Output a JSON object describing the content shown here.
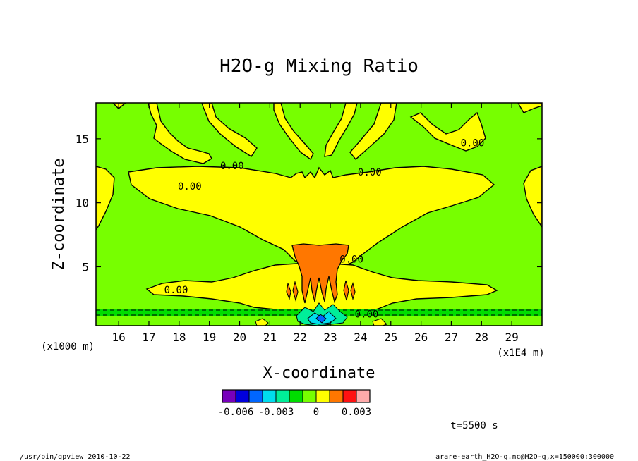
{
  "chart_data": {
    "type": "heatmap",
    "title": "H2O-g Mixing Ratio",
    "xlabel": "X-coordinate",
    "ylabel": "Z-coordinate",
    "x_unit_note": "(x1E4 m)",
    "y_unit_note": "(x1000 m)",
    "xlim": [
      15.25,
      30.0
    ],
    "ylim": [
      0.4,
      17.8
    ],
    "x_ticks": [
      16,
      17,
      18,
      19,
      20,
      21,
      22,
      23,
      24,
      25,
      26,
      27,
      28,
      29
    ],
    "y_ticks": [
      5,
      10,
      15
    ],
    "contour_labels": [
      {
        "text": "0.00",
        "x": 19.75,
        "z": 12.9
      },
      {
        "text": "0.00",
        "x": 18.35,
        "z": 11.3
      },
      {
        "text": "0.00",
        "x": 24.3,
        "z": 12.4
      },
      {
        "text": "0.00",
        "x": 27.7,
        "z": 14.7
      },
      {
        "text": "0.00",
        "x": 23.7,
        "z": 5.6
      },
      {
        "text": "0.00",
        "x": 17.9,
        "z": 3.2
      },
      {
        "text": "0.00",
        "x": 24.2,
        "z": 1.3
      }
    ],
    "colorbar": {
      "colors": [
        "#7700bb",
        "#0000dd",
        "#0066ff",
        "#00ddee",
        "#00ee99",
        "#00dd00",
        "#77ff00",
        "#ffff00",
        "#ff7700",
        "#ff1111",
        "#ffaaaa"
      ],
      "tick_labels": [
        {
          "label": "-0.006",
          "index": 1
        },
        {
          "label": "-0.003",
          "index": 4
        },
        {
          "label": "0",
          "index": 7
        },
        {
          "label": "0.003",
          "index": 10
        }
      ]
    },
    "time_label": "t=5500 s",
    "footer_left": "/usr/bin/gpview   2010-10-22",
    "footer_right": "arare-earth_H2O-g.nc@H2O-g,x=150000:300000"
  }
}
